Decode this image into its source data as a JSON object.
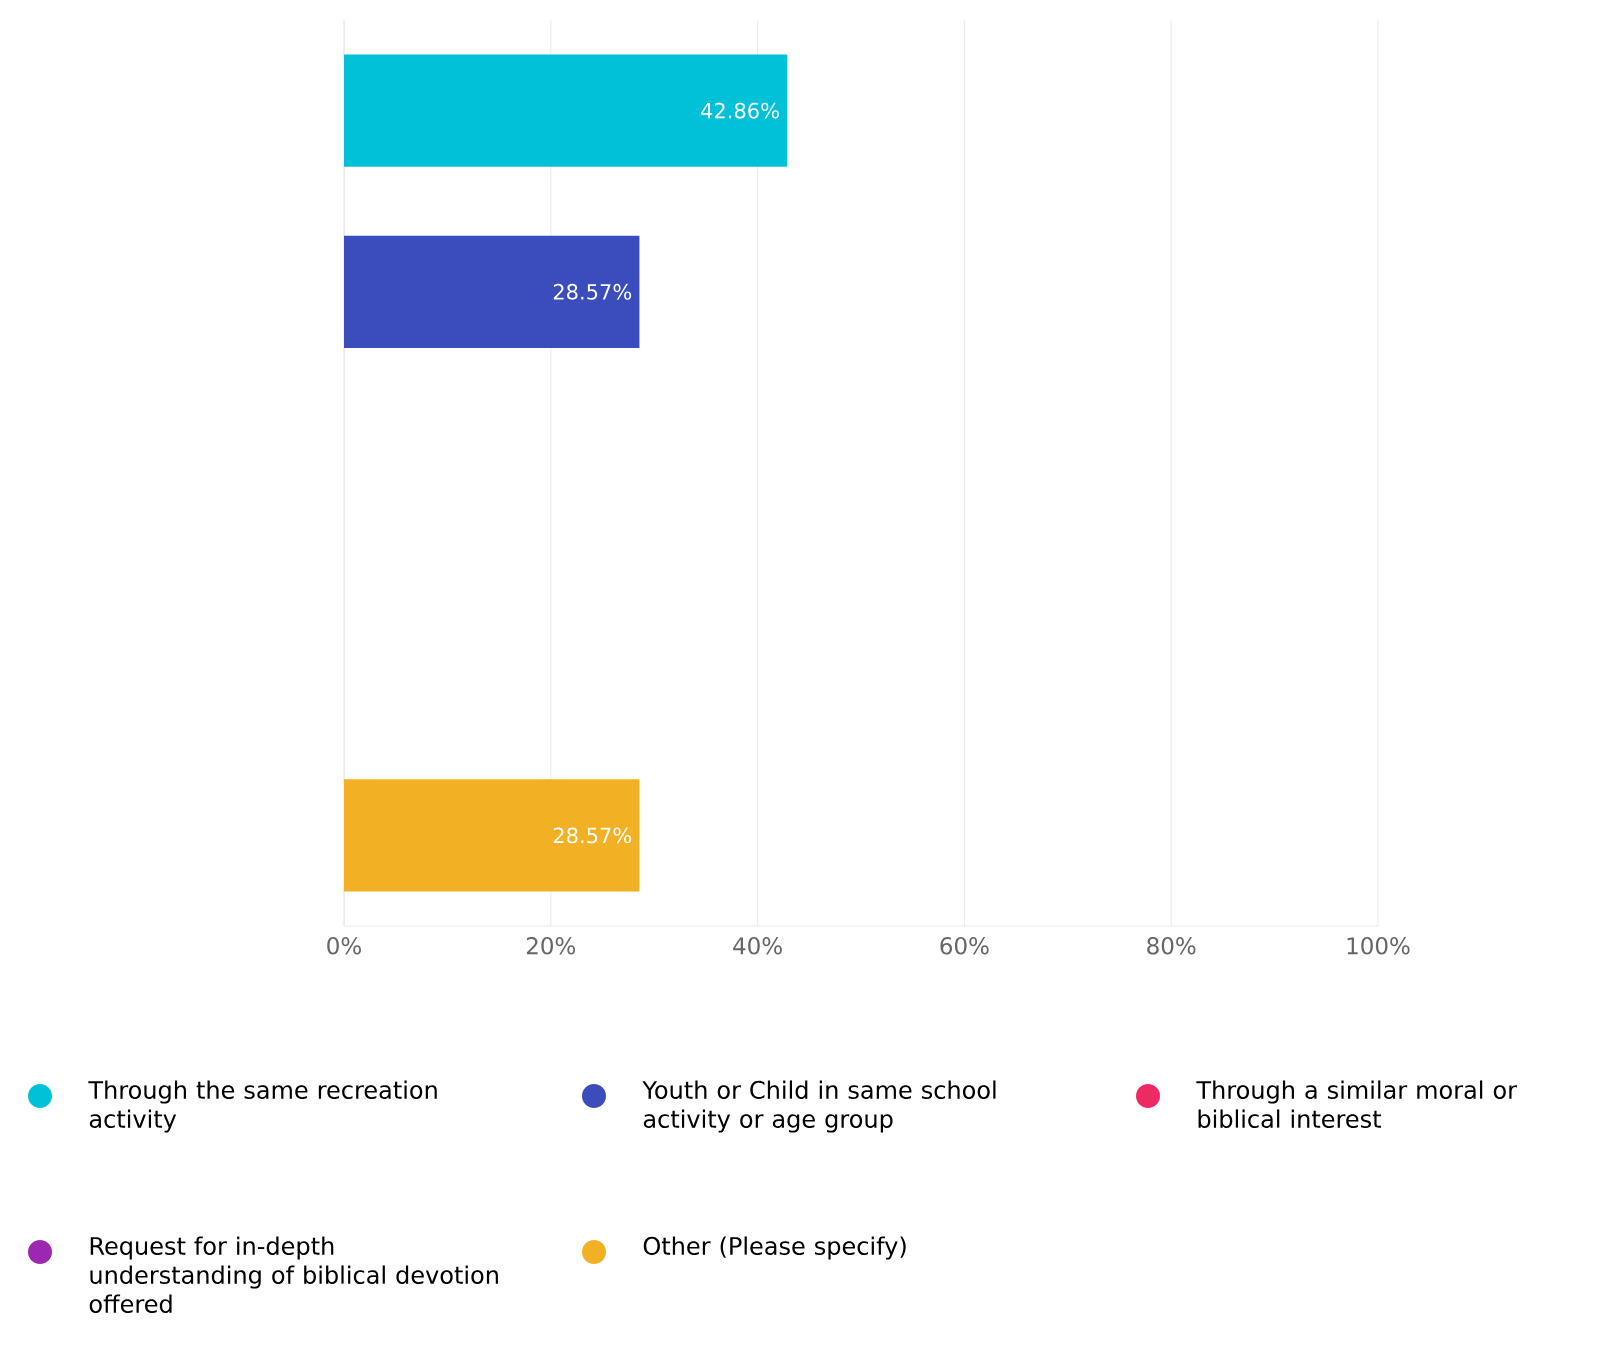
{
  "chart_data": {
    "type": "bar",
    "orientation": "horizontal",
    "categories": [
      null,
      null,
      null,
      null,
      null
    ],
    "series": [
      {
        "name": "Through the same recreation activity",
        "color": "#00c1d8",
        "values": [
          42.86,
          null,
          null,
          null,
          null
        ],
        "value_labels": [
          "42.86%",
          null,
          null,
          null,
          null
        ]
      },
      {
        "name": "Youth or Child in same school activity or age group",
        "color": "#3b4dbc",
        "values": [
          null,
          28.57,
          null,
          null,
          null
        ],
        "value_labels": [
          null,
          "28.57%",
          null,
          null,
          null
        ]
      },
      {
        "name": "Through a similar moral or biblical interest",
        "color": "#ee2a63",
        "values": [
          null,
          null,
          0,
          null,
          null
        ]
      },
      {
        "name": "Request for in-depth understanding of biblical devotion offered",
        "color": "#9c27b0",
        "values": [
          null,
          null,
          null,
          0,
          null
        ]
      },
      {
        "name": "Other (Please specify)",
        "color": "#f2b124",
        "values": [
          null,
          null,
          null,
          null,
          28.57
        ],
        "value_labels": [
          null,
          null,
          null,
          null,
          "28.57%"
        ]
      }
    ],
    "xlim": [
      0,
      100
    ],
    "xticks": [
      {
        "value": 0,
        "label": "0%"
      },
      {
        "value": 20,
        "label": "20%"
      },
      {
        "value": 40,
        "label": "40%"
      },
      {
        "value": 60,
        "label": "60%"
      },
      {
        "value": 80,
        "label": "80%"
      },
      {
        "value": 100,
        "label": "100%"
      }
    ],
    "grid": "x",
    "legend": "bottom"
  }
}
